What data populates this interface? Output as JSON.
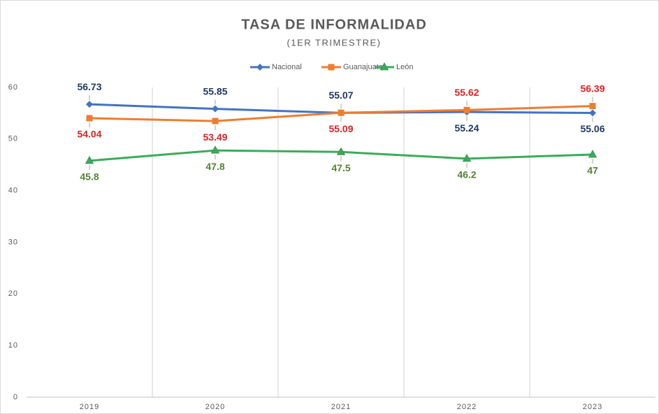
{
  "chart_data": {
    "type": "line",
    "title": "TASA DE INFORMALIDAD",
    "subtitle": "(1ER TRIMESTRE)",
    "categories": [
      "2019",
      "2020",
      "2021",
      "2022",
      "2023"
    ],
    "series": [
      {
        "name": "Nacional",
        "color": "#4472c4",
        "label_color": "#1f3864",
        "values": [
          56.73,
          55.85,
          55.07,
          55.24,
          55.06
        ]
      },
      {
        "name": "Guanajuato",
        "color": "#ed7d31",
        "label_color": "#e0201f",
        "values": [
          54.04,
          53.49,
          55.09,
          55.62,
          56.39
        ]
      },
      {
        "name": "León",
        "color": "#3bab5a",
        "label_color": "#548235",
        "values": [
          45.8,
          47.8,
          47.5,
          46.2,
          47
        ]
      }
    ],
    "ylim": [
      0,
      60
    ],
    "yticks": [
      0,
      10,
      20,
      30,
      40,
      50,
      60
    ],
    "legend": "top",
    "grid": false
  }
}
